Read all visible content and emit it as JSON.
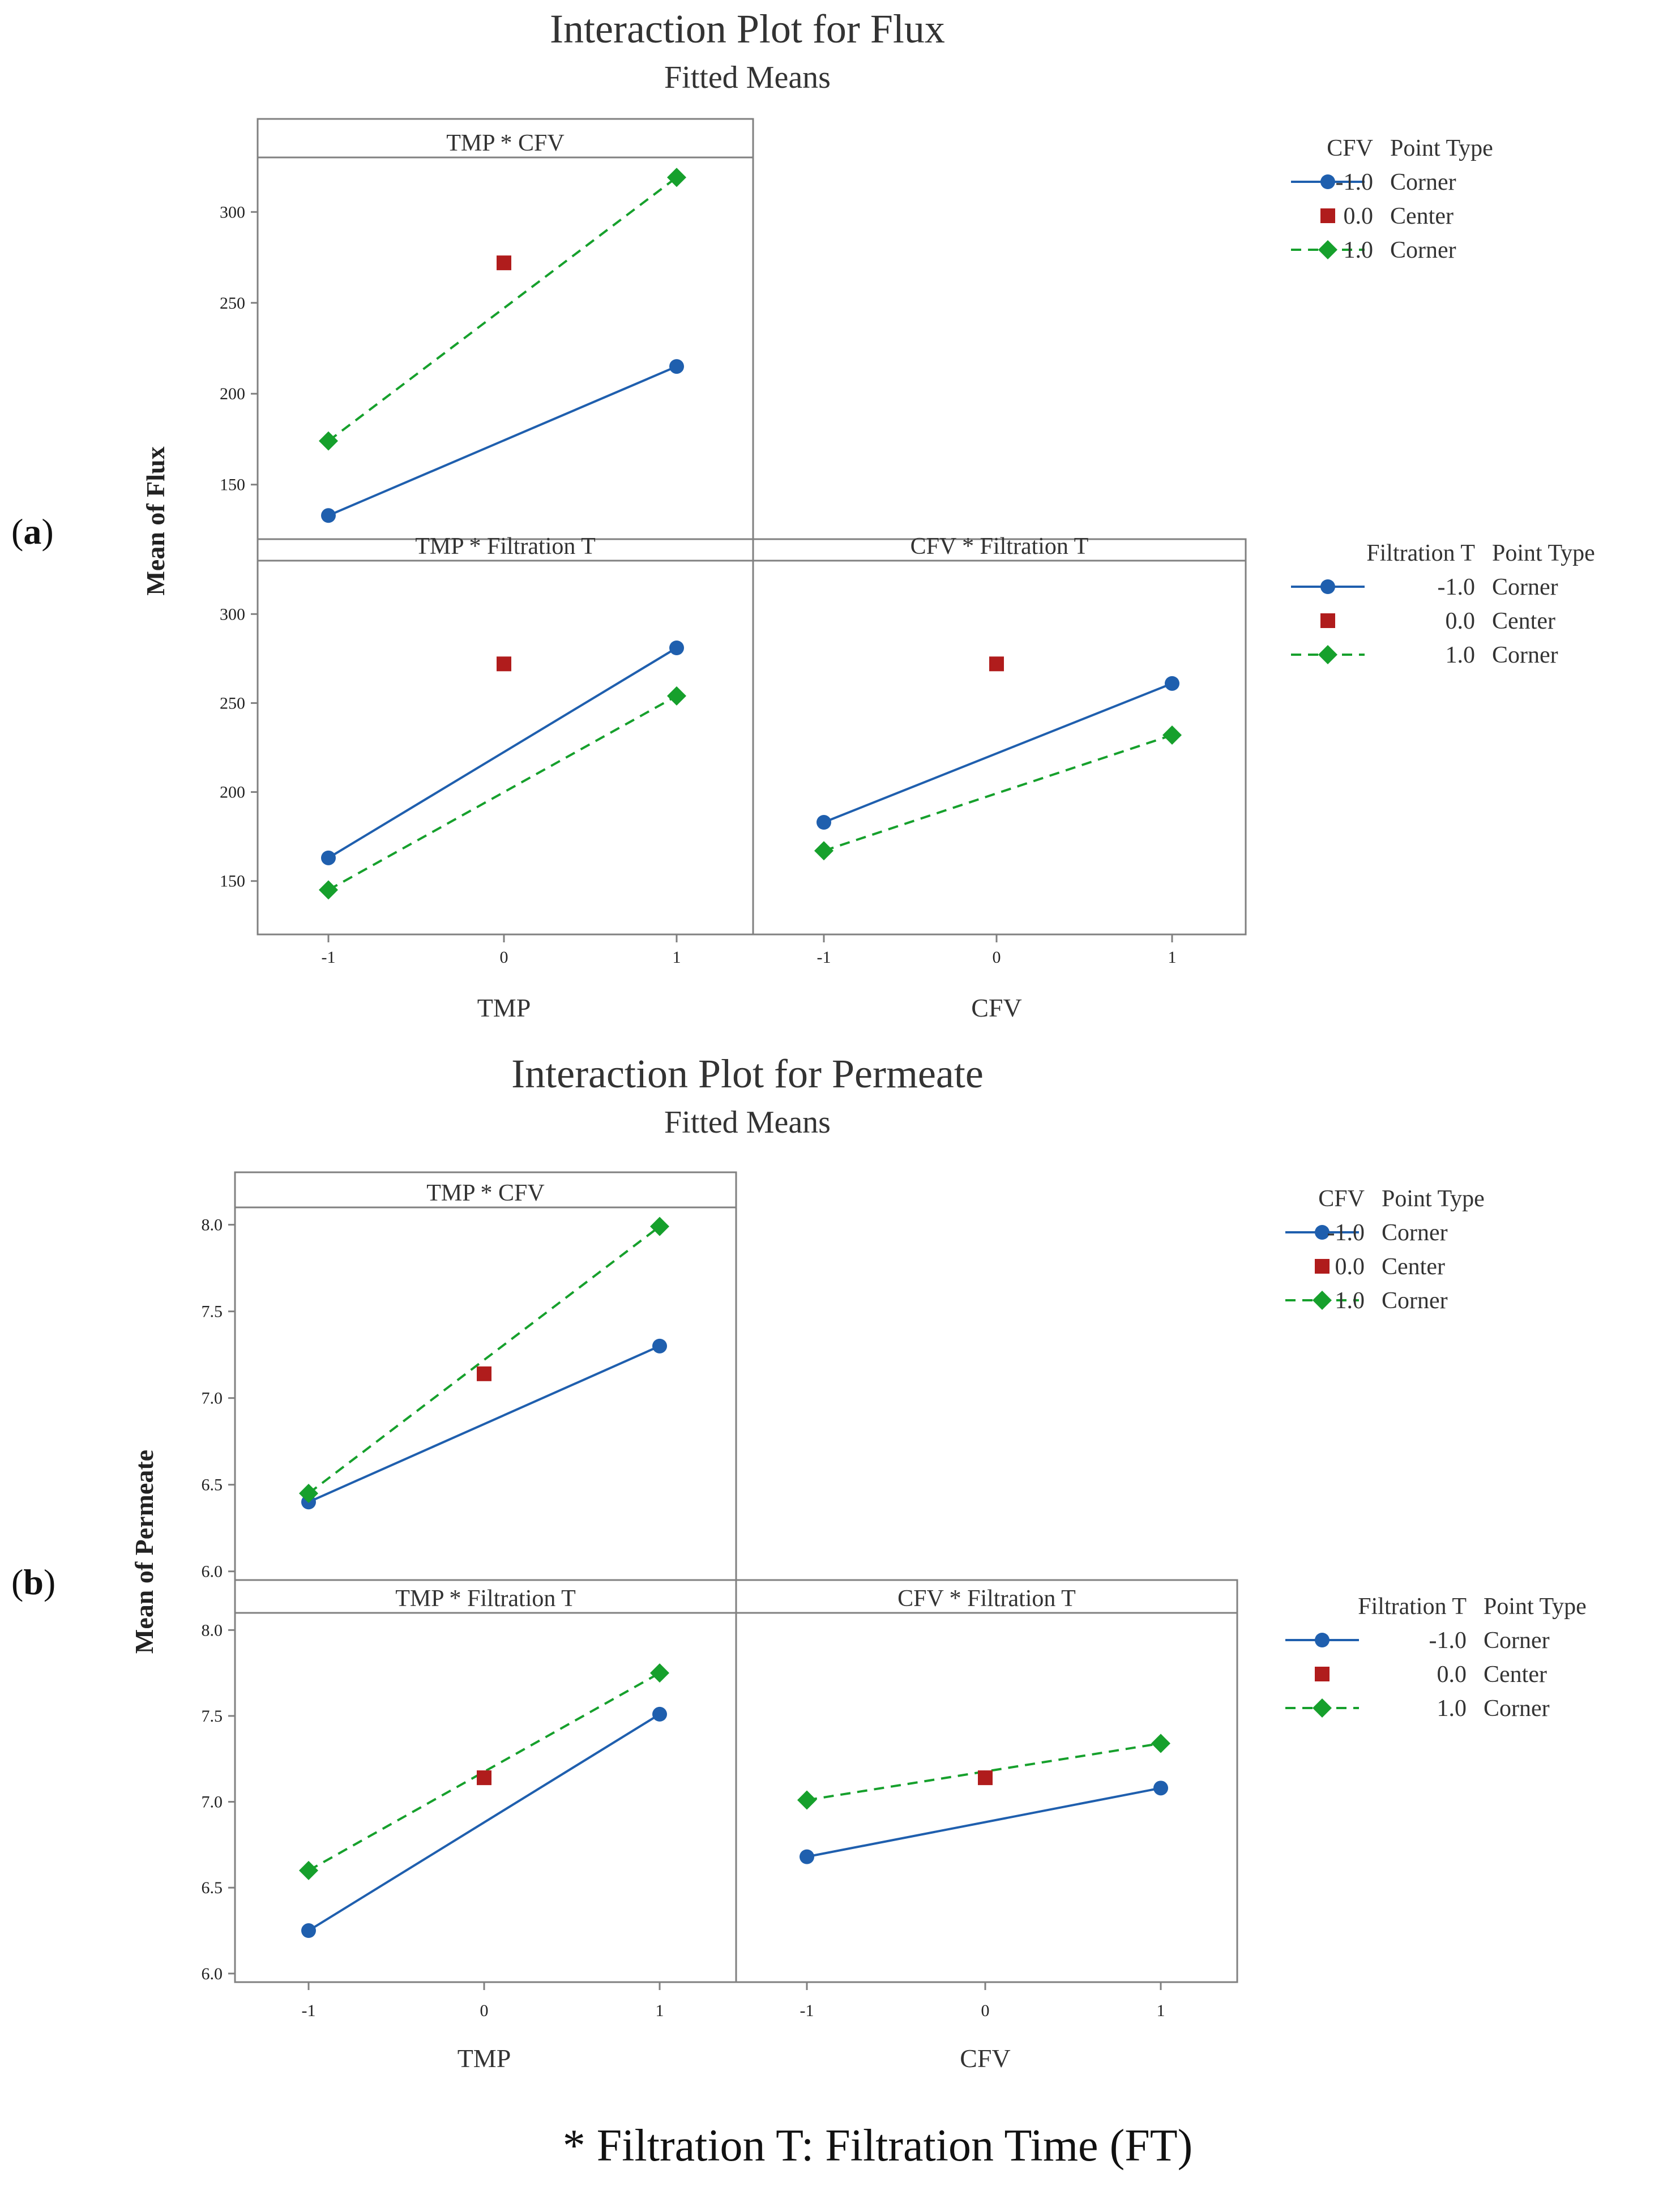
{
  "colors": {
    "blue": "#1f5fae",
    "red": "#b01c1c",
    "green": "#16a02c",
    "axis": "#808080",
    "text": "#333333"
  },
  "footnote": "* Filtration T: Filtration Time (FT)",
  "chart_data": [
    {
      "type": "line",
      "panel_label_open": "(",
      "panel_label_letter": "a",
      "panel_label_close": ")",
      "title": "Interaction Plot for Flux",
      "subtitle": "Fitted Means",
      "ylabel": "Mean of Flux",
      "ylim": [
        120,
        330
      ],
      "yticks": [
        150,
        200,
        250,
        300
      ],
      "x_tick_labels": [
        "-1",
        "0",
        "1"
      ],
      "xlabels": [
        "TMP",
        "CFV"
      ],
      "legends": [
        {
          "header_factor": "CFV",
          "header_type": "Point Type",
          "entries": [
            {
              "level": "-1.0",
              "type": "Corner"
            },
            {
              "level": "0.0",
              "type": "Center"
            },
            {
              "level": "1.0",
              "type": "Corner"
            }
          ]
        },
        {
          "header_factor": "Filtration T",
          "header_type": "Point Type",
          "entries": [
            {
              "level": "-1.0",
              "type": "Corner"
            },
            {
              "level": "0.0",
              "type": "Center"
            },
            {
              "level": "1.0",
              "type": "Corner"
            }
          ]
        }
      ],
      "panels": [
        {
          "title": "TMP * CFV",
          "x": [
            -1,
            1
          ],
          "series": [
            {
              "name": "-1.0 Corner",
              "values": [
                133,
                215
              ]
            },
            {
              "name": "1.0 Corner",
              "values": [
                174,
                319
              ]
            }
          ],
          "center": {
            "x": 0,
            "y": 272
          }
        },
        {
          "title": "TMP * Filtration T",
          "x": [
            -1,
            1
          ],
          "series": [
            {
              "name": "-1.0 Corner",
              "values": [
                163,
                281
              ]
            },
            {
              "name": "1.0 Corner",
              "values": [
                145,
                254
              ]
            }
          ],
          "center": {
            "x": 0,
            "y": 272
          }
        },
        {
          "title": "CFV * Filtration T",
          "x": [
            -1,
            1
          ],
          "series": [
            {
              "name": "-1.0 Corner",
              "values": [
                183,
                261
              ]
            },
            {
              "name": "1.0 Corner",
              "values": [
                167,
                232
              ]
            }
          ],
          "center": {
            "x": 0,
            "y": 272
          }
        }
      ]
    },
    {
      "type": "line",
      "panel_label_open": "(",
      "panel_label_letter": "b",
      "panel_label_close": ")",
      "title": "Interaction Plot for Permeate",
      "subtitle": "Fitted Means",
      "ylabel": "Mean of Permeate",
      "ylim": [
        5.95,
        8.1
      ],
      "yticks": [
        "6.0",
        "6.5",
        "7.0",
        "7.5",
        "8.0"
      ],
      "x_tick_labels": [
        "-1",
        "0",
        "1"
      ],
      "xlabels": [
        "TMP",
        "CFV"
      ],
      "legends": [
        {
          "header_factor": "CFV",
          "header_type": "Point Type",
          "entries": [
            {
              "level": "-1.0",
              "type": "Corner"
            },
            {
              "level": "0.0",
              "type": "Center"
            },
            {
              "level": "1.0",
              "type": "Corner"
            }
          ]
        },
        {
          "header_factor": "Filtration T",
          "header_type": "Point Type",
          "entries": [
            {
              "level": "-1.0",
              "type": "Corner"
            },
            {
              "level": "0.0",
              "type": "Center"
            },
            {
              "level": "1.0",
              "type": "Corner"
            }
          ]
        }
      ],
      "panels": [
        {
          "title": "TMP * CFV",
          "x": [
            -1,
            1
          ],
          "series": [
            {
              "name": "-1.0 Corner",
              "values": [
                6.4,
                7.3
              ]
            },
            {
              "name": "1.0 Corner",
              "values": [
                6.45,
                7.99
              ]
            }
          ],
          "center": {
            "x": 0,
            "y": 7.14
          }
        },
        {
          "title": "TMP * Filtration T",
          "x": [
            -1,
            1
          ],
          "series": [
            {
              "name": "-1.0 Corner",
              "values": [
                6.25,
                7.51
              ]
            },
            {
              "name": "1.0 Corner",
              "values": [
                6.6,
                7.75
              ]
            }
          ],
          "center": {
            "x": 0,
            "y": 7.14
          }
        },
        {
          "title": "CFV * Filtration T",
          "x": [
            -1,
            1
          ],
          "series": [
            {
              "name": "-1.0 Corner",
              "values": [
                6.68,
                7.08
              ]
            },
            {
              "name": "1.0 Corner",
              "values": [
                7.01,
                7.34
              ]
            }
          ],
          "center": {
            "x": 0,
            "y": 7.14
          }
        }
      ]
    }
  ]
}
